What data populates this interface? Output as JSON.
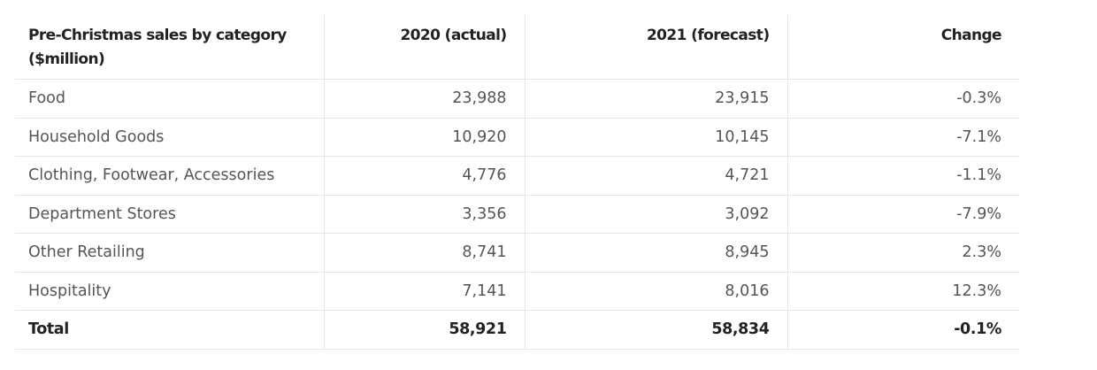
{
  "table": {
    "headers": [
      "Pre-Christmas sales by category ($million)",
      "2020 (actual)",
      "2021 (forecast)",
      "Change"
    ],
    "rows": [
      {
        "category": "Food",
        "y2020": "23,988",
        "y2021": "23,915",
        "change": "-0.3%"
      },
      {
        "category": "Household Goods",
        "y2020": "10,920",
        "y2021": "10,145",
        "change": "-7.1%"
      },
      {
        "category": "Clothing, Footwear, Accessories",
        "y2020": "4,776",
        "y2021": "4,721",
        "change": "-1.1%"
      },
      {
        "category": "Department Stores",
        "y2020": "3,356",
        "y2021": "3,092",
        "change": "-7.9%"
      },
      {
        "category": "Other Retailing",
        "y2020": "8,741",
        "y2021": "8,945",
        "change": "2.3%"
      },
      {
        "category": "Hospitality",
        "y2020": "7,141",
        "y2021": "8,016",
        "change": "12.3%"
      }
    ],
    "total": {
      "category": "Total",
      "y2020": "58,921",
      "y2021": "58,834",
      "change": "-0.1%"
    }
  }
}
